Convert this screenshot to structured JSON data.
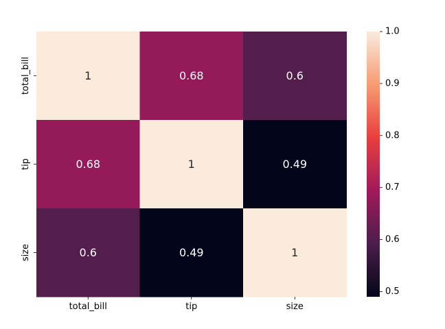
{
  "chart_data": {
    "type": "heatmap",
    "title": "",
    "xlabel": "",
    "ylabel": "",
    "x_categories": [
      "total_bill",
      "tip",
      "size"
    ],
    "y_categories": [
      "total_bill",
      "tip",
      "size"
    ],
    "values": [
      [
        1,
        0.68,
        0.6
      ],
      [
        0.68,
        1,
        0.49
      ],
      [
        0.6,
        0.49,
        1
      ]
    ],
    "annotations": [
      [
        "1",
        "0.68",
        "0.6"
      ],
      [
        "0.68",
        "1",
        "0.49"
      ],
      [
        "0.6",
        "0.49",
        "1"
      ]
    ],
    "colorbar": {
      "range": [
        0.49,
        1.0
      ],
      "ticks": [
        0.5,
        0.6,
        0.7,
        0.8,
        0.9,
        1.0
      ],
      "tick_labels": [
        "0.5",
        "0.6",
        "0.7",
        "0.8",
        "0.9",
        "1.0"
      ],
      "colormap": "rocket",
      "color_stops": [
        "#03051a",
        "#4c1d4b",
        "#a11a5b",
        "#e83f3f",
        "#f69c73",
        "#faebdd"
      ]
    },
    "grid": false,
    "legend": "colorbar-right"
  }
}
